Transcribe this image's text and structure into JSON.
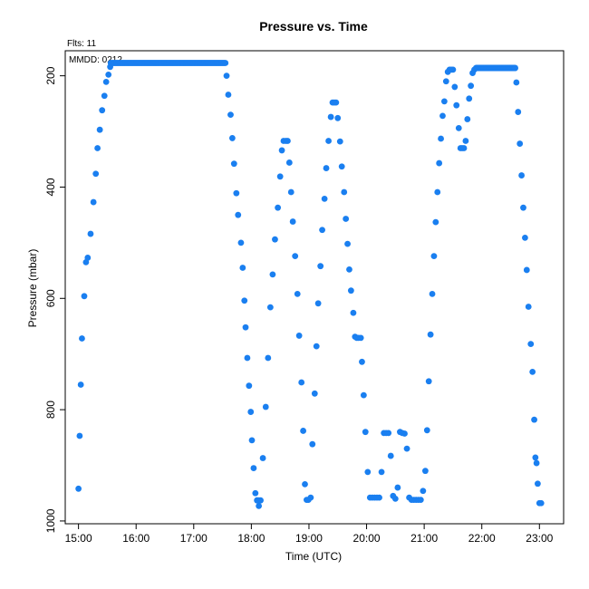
{
  "chart_data": {
    "type": "scatter",
    "title": "Pressure  vs. Time",
    "xlabel": "Time (UTC)",
    "ylabel": "Pressure (mbar)",
    "annotations": [
      "Flts: 11",
      "MMDD: 0212"
    ],
    "x_ticks": [
      "15:00",
      "16:00",
      "17:00",
      "18:00",
      "19:00",
      "20:00",
      "21:00",
      "22:00",
      "23:00"
    ],
    "y_ticks": [
      "200",
      "400",
      "600",
      "800",
      "1000"
    ],
    "xlim_hours": [
      14.77,
      23.42
    ],
    "ylim": [
      1005,
      155
    ],
    "y_inverted": true,
    "grid": false,
    "marker_color": "#1a7ff0",
    "series": [
      {
        "points_segments": [
          {
            "x": [
              15.0,
              15.02,
              15.04,
              15.06,
              15.1,
              15.13,
              15.16,
              15.21,
              15.26,
              15.3,
              15.33,
              15.37,
              15.41,
              15.45,
              15.48,
              15.52,
              15.55
            ],
            "y": [
              942,
              847,
              755,
              672,
              596,
              535,
              527,
              484,
              427,
              376,
              330,
              297,
              262,
              236,
              211,
              198,
              184
            ]
          },
          {
            "x_range": [
              15.56,
              17.55
            ],
            "y_const": 177
          },
          {
            "x": [
              17.57,
              17.6,
              17.64,
              17.67,
              17.7,
              17.74,
              17.77,
              17.82,
              17.85,
              17.88,
              17.9,
              17.93,
              17.96,
              17.99,
              18.01,
              18.04,
              18.07,
              18.1,
              18.13
            ],
            "y": [
              200,
              234,
              270,
              312,
              358,
              411,
              450,
              500,
              545,
              604,
              652,
              707,
              757,
              804,
              855,
              905,
              950,
              963,
              973
            ]
          },
          {
            "x": [
              18.1,
              18.13,
              18.16,
              18.2,
              18.25,
              18.29,
              18.33,
              18.37,
              18.41,
              18.46,
              18.5,
              18.53,
              18.56,
              18.6,
              18.63,
              18.66,
              18.69,
              18.72,
              18.76,
              18.8,
              18.83,
              18.87,
              18.9,
              18.93,
              18.96,
              18.99,
              19.03
            ],
            "y": [
              963,
              963,
              963,
              887,
              795,
              707,
              616,
              557,
              494,
              437,
              381,
              334,
              317,
              317,
              317,
              356,
              409,
              462,
              524,
              592,
              667,
              751,
              838,
              934,
              962,
              962,
              958
            ]
          },
          {
            "x": [
              19.06,
              19.1,
              19.13,
              19.16,
              19.2,
              19.23,
              19.27,
              19.3,
              19.34,
              19.38,
              19.41,
              19.44,
              19.47,
              19.5,
              19.54,
              19.57,
              19.61,
              19.64,
              19.67,
              19.7,
              19.73,
              19.77,
              19.8,
              19.83,
              19.86,
              19.9,
              19.92,
              19.95
            ],
            "y": [
              862,
              771,
              686,
              609,
              542,
              477,
              421,
              366,
              317,
              274,
              248,
              248,
              248,
              276,
              318,
              363,
              409,
              457,
              502,
              548,
              586,
              626,
              669,
              671,
              671,
              671,
              714,
              774
            ]
          },
          {
            "x": [
              19.98,
              20.02,
              20.06,
              20.1,
              20.14,
              20.18,
              20.22,
              20.26,
              20.3,
              20.34,
              20.38,
              20.42,
              20.46,
              20.5,
              20.54,
              20.58,
              20.62,
              20.66,
              20.7,
              20.74,
              20.78,
              20.82,
              20.86,
              20.9,
              20.94,
              20.98,
              21.02,
              21.05,
              21.08,
              21.11,
              21.14
            ],
            "y": [
              840,
              912,
              958,
              958,
              958,
              958,
              958,
              912,
              842,
              842,
              842,
              883,
              955,
              960,
              940,
              840,
              842,
              843,
              870,
              958,
              962,
              962,
              962,
              962,
              962,
              946,
              910,
              837,
              749,
              665,
              592
            ]
          },
          {
            "x": [
              21.17,
              21.2,
              21.23,
              21.26,
              21.29,
              21.32,
              21.35,
              21.38,
              21.41,
              21.44,
              21.47,
              21.5,
              21.53,
              21.56,
              21.6,
              21.63,
              21.66,
              21.69,
              21.72,
              21.75,
              21.78,
              21.81,
              21.84,
              21.87
            ],
            "y": [
              524,
              463,
              409,
              357,
              313,
              272,
              246,
              210,
              193,
              189,
              189,
              189,
              220,
              253,
              294,
              330,
              330,
              330,
              317,
              278,
              241,
              218,
              195,
              189
            ]
          },
          {
            "x_range": [
              21.9,
              22.58
            ],
            "y_const": 186
          },
          {
            "x": [
              22.6,
              22.63,
              22.66,
              22.69,
              22.72,
              22.75,
              22.78,
              22.81,
              22.85,
              22.88,
              22.91,
              22.93,
              22.95,
              22.97,
              23.0,
              23.03
            ],
            "y": [
              212,
              265,
              322,
              379,
              437,
              491,
              549,
              615,
              682,
              732,
              818,
              886,
              896,
              933,
              968,
              968
            ]
          }
        ]
      }
    ]
  }
}
